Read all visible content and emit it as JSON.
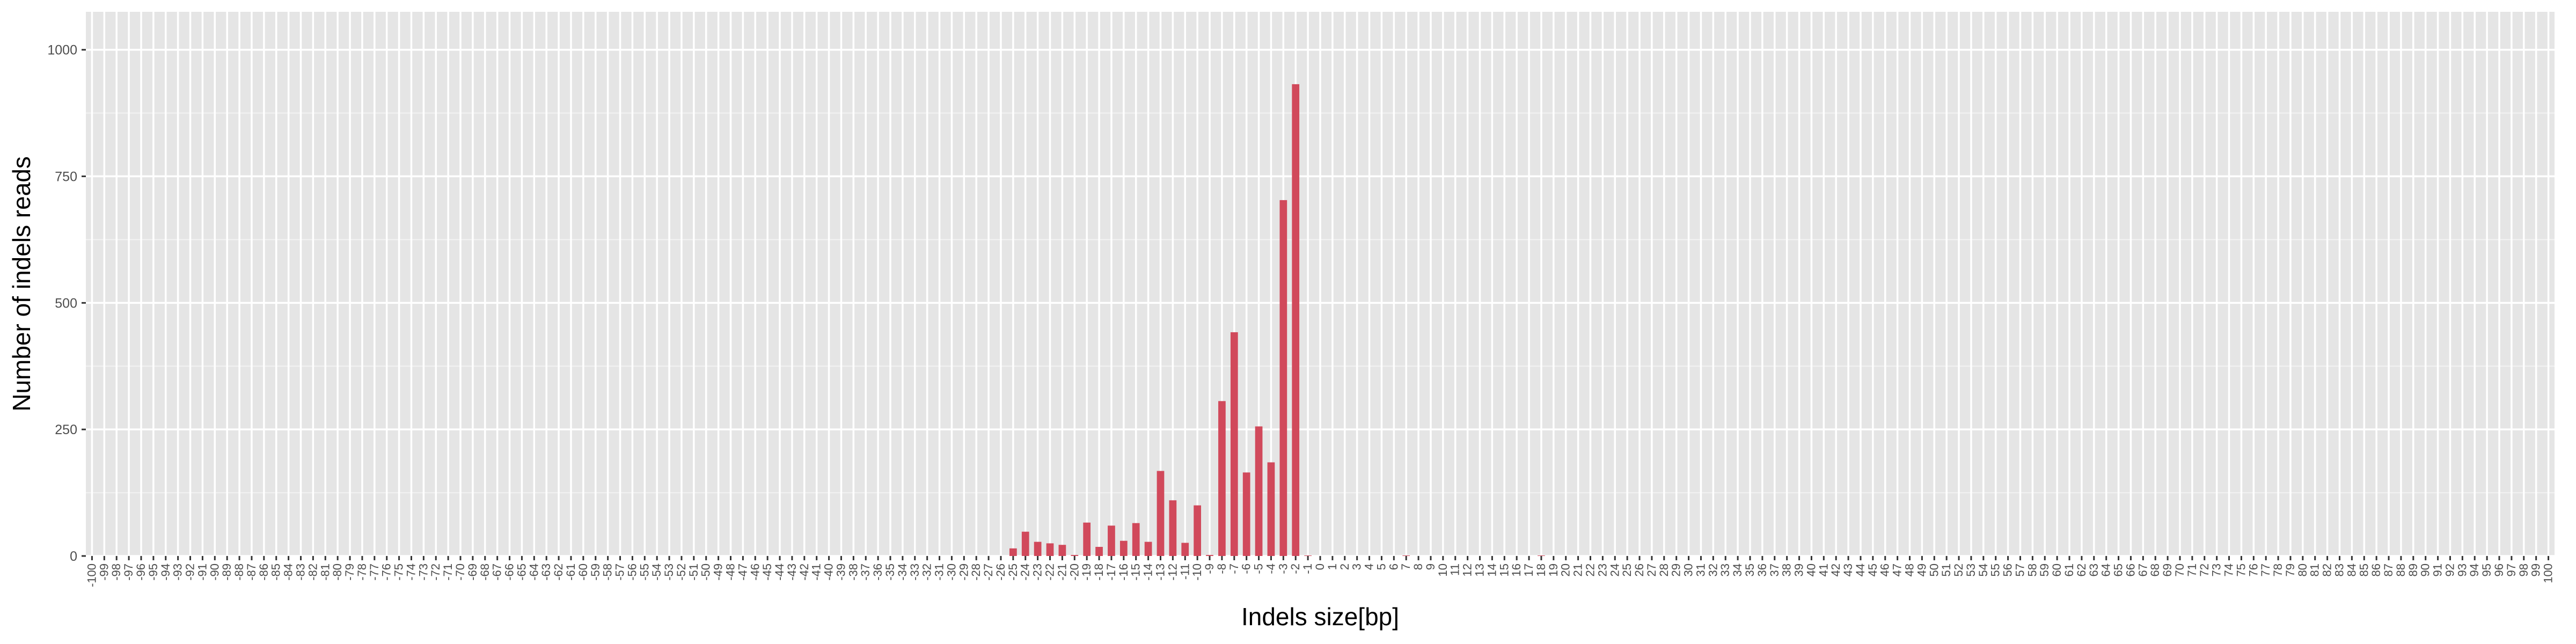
{
  "chart_data": {
    "type": "bar",
    "xlabel": "Indels size[bp]",
    "ylabel": "Number of indels reads",
    "ylim": [
      0,
      1075
    ],
    "yticks": [
      0,
      250,
      500,
      750,
      1000
    ],
    "x_range": [
      -100,
      100
    ],
    "grid": true,
    "legend": "none",
    "series": [
      {
        "color": "#d1495b",
        "points": [
          {
            "x": -25,
            "y": 15
          },
          {
            "x": -24,
            "y": 48
          },
          {
            "x": -23,
            "y": 28
          },
          {
            "x": -22,
            "y": 25
          },
          {
            "x": -21,
            "y": 22
          },
          {
            "x": -20,
            "y": 2
          },
          {
            "x": -19,
            "y": 66
          },
          {
            "x": -18,
            "y": 18
          },
          {
            "x": -17,
            "y": 60
          },
          {
            "x": -16,
            "y": 30
          },
          {
            "x": -15,
            "y": 65
          },
          {
            "x": -14,
            "y": 28
          },
          {
            "x": -13,
            "y": 168
          },
          {
            "x": -12,
            "y": 110
          },
          {
            "x": -11,
            "y": 26
          },
          {
            "x": -10,
            "y": 100
          },
          {
            "x": -9,
            "y": 2
          },
          {
            "x": -8,
            "y": 306
          },
          {
            "x": -7,
            "y": 442
          },
          {
            "x": -6,
            "y": 165
          },
          {
            "x": -5,
            "y": 256
          },
          {
            "x": -4,
            "y": 185
          },
          {
            "x": -3,
            "y": 703
          },
          {
            "x": -2,
            "y": 932
          },
          {
            "x": -1,
            "y": 1
          },
          {
            "x": 7,
            "y": 1
          },
          {
            "x": 18,
            "y": 1
          }
        ]
      }
    ]
  }
}
